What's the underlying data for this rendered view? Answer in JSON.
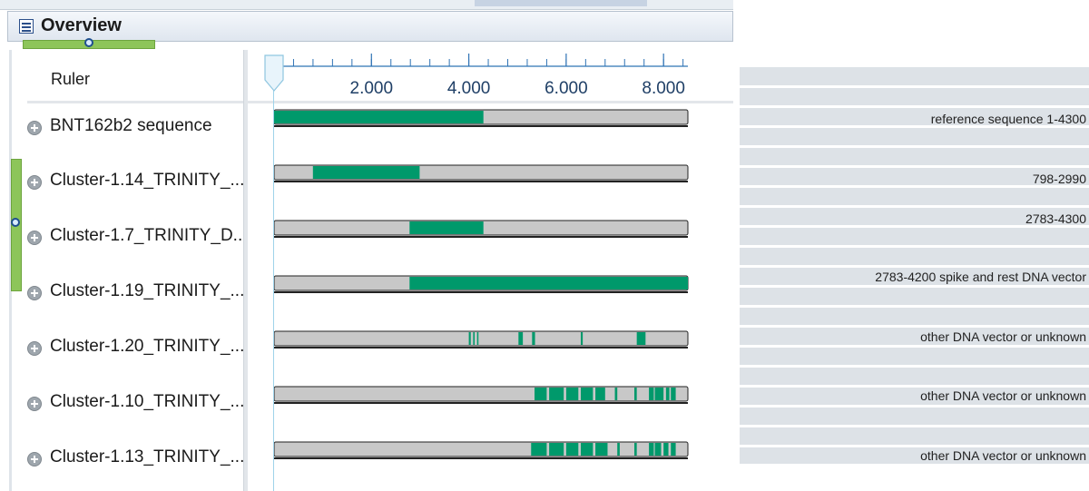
{
  "window": {
    "title": "Overview"
  },
  "ruler": {
    "label": "Ruler",
    "tick_labels": [
      "2.000",
      "4.000",
      "6.000",
      "8.000"
    ],
    "tick_values": [
      2000,
      4000,
      6000,
      8000
    ],
    "minor_step": 400
  },
  "sequence_length": 8500,
  "cursor_position": 0,
  "colors": {
    "covered": "#00996b",
    "uncovered": "#c8c8c8",
    "bar_outline": "#222222",
    "annotation_panel": "#dde2e7"
  },
  "sequences": [
    {
      "name": "BNT162b2 sequence",
      "covered": [
        [
          0,
          4300
        ]
      ]
    },
    {
      "name": "Cluster-1.14_TRINITY_...",
      "covered": [
        [
          798,
          2990
        ]
      ]
    },
    {
      "name": "Cluster-1.7_TRINITY_D...",
      "covered": [
        [
          2783,
          4300
        ]
      ]
    },
    {
      "name": "Cluster-1.19_TRINITY_...",
      "covered": [
        [
          2783,
          8500
        ]
      ]
    },
    {
      "name": "Cluster-1.20_TRINITY_...",
      "covered": [
        [
          4000,
          4040
        ],
        [
          4090,
          4120
        ],
        [
          4170,
          4190
        ],
        [
          5020,
          5110
        ],
        [
          5300,
          5360
        ],
        [
          6300,
          6340
        ],
        [
          7450,
          7630
        ]
      ]
    },
    {
      "name": "Cluster-1.10_TRINITY_...",
      "covered": [
        [
          5350,
          5600
        ],
        [
          5650,
          5950
        ],
        [
          6000,
          6250
        ],
        [
          6300,
          6550
        ],
        [
          6600,
          6800
        ],
        [
          7000,
          7050
        ],
        [
          7400,
          7450
        ],
        [
          7700,
          7800
        ],
        [
          7820,
          8000
        ],
        [
          8050,
          8120
        ],
        [
          8150,
          8250
        ]
      ]
    },
    {
      "name": "Cluster-1.13_TRINITY_...",
      "covered": [
        [
          5280,
          5600
        ],
        [
          5650,
          5950
        ],
        [
          6000,
          6250
        ],
        [
          6300,
          6550
        ],
        [
          6600,
          6850
        ],
        [
          7050,
          7100
        ],
        [
          7400,
          7450
        ],
        [
          7700,
          7800
        ],
        [
          7820,
          7950
        ],
        [
          8000,
          8100
        ],
        [
          8150,
          8250
        ]
      ]
    }
  ],
  "annotations": [
    {
      "text": "reference sequence 1-4300"
    },
    {
      "text": "798-2990"
    },
    {
      "text": "2783-4300"
    },
    {
      "text": "2783-4200 spike and  rest DNA vector"
    },
    {
      "text": "other DNA vector or unknown"
    },
    {
      "text": "other DNA vector or unknown"
    },
    {
      "text": "other DNA vector or unknown"
    }
  ]
}
